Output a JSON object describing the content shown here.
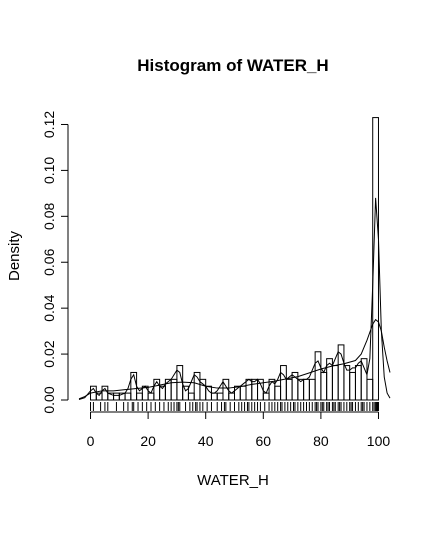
{
  "chart_data": {
    "type": "histogram",
    "title": "Histogram of WATER_H",
    "xlabel": "WATER_H",
    "ylabel": "Density",
    "xlim": [
      -4,
      104
    ],
    "ylim": [
      0,
      0.125
    ],
    "xticks": [
      0,
      20,
      40,
      60,
      80,
      100
    ],
    "yticks": [
      0.0,
      0.02,
      0.04,
      0.06,
      0.08,
      0.1,
      0.12
    ],
    "ytick_labels": [
      "0.00",
      "0.02",
      "0.04",
      "0.06",
      "0.08",
      "0.10",
      "0.12"
    ],
    "bin_width": 2,
    "bins": [
      {
        "x0": 0,
        "density": 0.006
      },
      {
        "x0": 2,
        "density": 0.003
      },
      {
        "x0": 4,
        "density": 0.006
      },
      {
        "x0": 6,
        "density": 0.003
      },
      {
        "x0": 8,
        "density": 0.003
      },
      {
        "x0": 10,
        "density": 0.003
      },
      {
        "x0": 12,
        "density": 0.003
      },
      {
        "x0": 14,
        "density": 0.012
      },
      {
        "x0": 16,
        "density": 0.003
      },
      {
        "x0": 18,
        "density": 0.006
      },
      {
        "x0": 20,
        "density": 0.003
      },
      {
        "x0": 22,
        "density": 0.009
      },
      {
        "x0": 24,
        "density": 0.006
      },
      {
        "x0": 26,
        "density": 0.009
      },
      {
        "x0": 28,
        "density": 0.009
      },
      {
        "x0": 30,
        "density": 0.015
      },
      {
        "x0": 32,
        "density": 0.006
      },
      {
        "x0": 34,
        "density": 0.003
      },
      {
        "x0": 36,
        "density": 0.012
      },
      {
        "x0": 38,
        "density": 0.009
      },
      {
        "x0": 40,
        "density": 0.006
      },
      {
        "x0": 42,
        "density": 0.003
      },
      {
        "x0": 44,
        "density": 0.003
      },
      {
        "x0": 46,
        "density": 0.009
      },
      {
        "x0": 48,
        "density": 0.003
      },
      {
        "x0": 50,
        "density": 0.006
      },
      {
        "x0": 52,
        "density": 0.006
      },
      {
        "x0": 54,
        "density": 0.009
      },
      {
        "x0": 56,
        "density": 0.009
      },
      {
        "x0": 58,
        "density": 0.009
      },
      {
        "x0": 60,
        "density": 0.003
      },
      {
        "x0": 62,
        "density": 0.009
      },
      {
        "x0": 64,
        "density": 0.006
      },
      {
        "x0": 66,
        "density": 0.015
      },
      {
        "x0": 68,
        "density": 0.009
      },
      {
        "x0": 70,
        "density": 0.012
      },
      {
        "x0": 72,
        "density": 0.009
      },
      {
        "x0": 74,
        "density": 0.009
      },
      {
        "x0": 76,
        "density": 0.009
      },
      {
        "x0": 78,
        "density": 0.021
      },
      {
        "x0": 80,
        "density": 0.012
      },
      {
        "x0": 82,
        "density": 0.018
      },
      {
        "x0": 84,
        "density": 0.015
      },
      {
        "x0": 86,
        "density": 0.024
      },
      {
        "x0": 88,
        "density": 0.015
      },
      {
        "x0": 90,
        "density": 0.012
      },
      {
        "x0": 92,
        "density": 0.015
      },
      {
        "x0": 94,
        "density": 0.018
      },
      {
        "x0": 96,
        "density": 0.009
      },
      {
        "x0": 98,
        "density": 0.123
      }
    ],
    "density_curve_wiggly": [
      [
        -4,
        0.0002
      ],
      [
        -2,
        0.001
      ],
      [
        0,
        0.004
      ],
      [
        1,
        0.005
      ],
      [
        2,
        0.003
      ],
      [
        3,
        0.002
      ],
      [
        4,
        0.004
      ],
      [
        5,
        0.005
      ],
      [
        6,
        0.003
      ],
      [
        8,
        0.002
      ],
      [
        10,
        0.002
      ],
      [
        12,
        0.003
      ],
      [
        13,
        0.005
      ],
      [
        14,
        0.009
      ],
      [
        15,
        0.011
      ],
      [
        16,
        0.006
      ],
      [
        17,
        0.004
      ],
      [
        18,
        0.005
      ],
      [
        19,
        0.006
      ],
      [
        20,
        0.004
      ],
      [
        21,
        0.003
      ],
      [
        22,
        0.006
      ],
      [
        23,
        0.008
      ],
      [
        24,
        0.006
      ],
      [
        25,
        0.005
      ],
      [
        26,
        0.007
      ],
      [
        27,
        0.008
      ],
      [
        28,
        0.009
      ],
      [
        29,
        0.011
      ],
      [
        30,
        0.013
      ],
      [
        31,
        0.012
      ],
      [
        32,
        0.007
      ],
      [
        33,
        0.004
      ],
      [
        34,
        0.005
      ],
      [
        35,
        0.008
      ],
      [
        36,
        0.011
      ],
      [
        37,
        0.01
      ],
      [
        38,
        0.008
      ],
      [
        39,
        0.007
      ],
      [
        40,
        0.006
      ],
      [
        41,
        0.004
      ],
      [
        42,
        0.003
      ],
      [
        43,
        0.003
      ],
      [
        44,
        0.004
      ],
      [
        45,
        0.006
      ],
      [
        46,
        0.008
      ],
      [
        47,
        0.006
      ],
      [
        48,
        0.004
      ],
      [
        49,
        0.003
      ],
      [
        50,
        0.004
      ],
      [
        51,
        0.005
      ],
      [
        52,
        0.006
      ],
      [
        53,
        0.007
      ],
      [
        54,
        0.008
      ],
      [
        55,
        0.009
      ],
      [
        56,
        0.008
      ],
      [
        57,
        0.008
      ],
      [
        58,
        0.009
      ],
      [
        59,
        0.007
      ],
      [
        60,
        0.004
      ],
      [
        61,
        0.003
      ],
      [
        62,
        0.006
      ],
      [
        63,
        0.008
      ],
      [
        64,
        0.007
      ],
      [
        65,
        0.009
      ],
      [
        66,
        0.012
      ],
      [
        67,
        0.011
      ],
      [
        68,
        0.009
      ],
      [
        69,
        0.01
      ],
      [
        70,
        0.011
      ],
      [
        71,
        0.01
      ],
      [
        72,
        0.009
      ],
      [
        73,
        0.008
      ],
      [
        74,
        0.009
      ],
      [
        75,
        0.009
      ],
      [
        76,
        0.01
      ],
      [
        77,
        0.013
      ],
      [
        78,
        0.016
      ],
      [
        79,
        0.017
      ],
      [
        80,
        0.014
      ],
      [
        81,
        0.012
      ],
      [
        82,
        0.015
      ],
      [
        83,
        0.016
      ],
      [
        84,
        0.015
      ],
      [
        85,
        0.018
      ],
      [
        86,
        0.021
      ],
      [
        87,
        0.02
      ],
      [
        88,
        0.016
      ],
      [
        89,
        0.013
      ],
      [
        90,
        0.013
      ],
      [
        91,
        0.014
      ],
      [
        92,
        0.014
      ],
      [
        93,
        0.016
      ],
      [
        94,
        0.017
      ],
      [
        95,
        0.014
      ],
      [
        96,
        0.011
      ],
      [
        97,
        0.018
      ],
      [
        98,
        0.05
      ],
      [
        99,
        0.088
      ],
      [
        100,
        0.07
      ],
      [
        101,
        0.03
      ],
      [
        102,
        0.01
      ],
      [
        103,
        0.003
      ],
      [
        104,
        0.0008
      ]
    ],
    "density_curve_smooth": [
      [
        -4,
        0.0005
      ],
      [
        -2,
        0.0015
      ],
      [
        0,
        0.003
      ],
      [
        4,
        0.004
      ],
      [
        8,
        0.004
      ],
      [
        12,
        0.0045
      ],
      [
        16,
        0.005
      ],
      [
        20,
        0.0055
      ],
      [
        24,
        0.0065
      ],
      [
        28,
        0.0075
      ],
      [
        32,
        0.0078
      ],
      [
        36,
        0.0075
      ],
      [
        40,
        0.006
      ],
      [
        44,
        0.0052
      ],
      [
        48,
        0.0052
      ],
      [
        52,
        0.0058
      ],
      [
        56,
        0.0068
      ],
      [
        60,
        0.0075
      ],
      [
        64,
        0.0082
      ],
      [
        68,
        0.0092
      ],
      [
        72,
        0.0102
      ],
      [
        76,
        0.0118
      ],
      [
        80,
        0.0135
      ],
      [
        84,
        0.0148
      ],
      [
        88,
        0.0158
      ],
      [
        92,
        0.0172
      ],
      [
        94,
        0.02
      ],
      [
        96,
        0.026
      ],
      [
        98,
        0.033
      ],
      [
        99,
        0.035
      ],
      [
        100,
        0.034
      ],
      [
        101,
        0.03
      ],
      [
        102,
        0.023
      ],
      [
        103,
        0.017
      ],
      [
        104,
        0.012
      ]
    ],
    "rug": [
      0,
      1,
      3.5,
      5,
      6,
      9,
      11.5,
      13,
      14.5,
      15,
      16.5,
      18,
      19.5,
      21,
      22.5,
      24,
      25.5,
      27,
      28,
      29,
      30,
      30.5,
      31,
      33,
      34.5,
      35.5,
      36.5,
      37,
      38,
      39,
      40.5,
      42,
      44,
      45.5,
      46.5,
      47,
      48.5,
      50,
      51.5,
      52.5,
      53.5,
      54.5,
      55,
      56,
      57,
      58,
      59,
      60.5,
      62,
      63,
      64,
      65,
      66,
      66.5,
      67.5,
      68.5,
      69.5,
      70.5,
      71,
      72,
      73,
      74,
      75,
      76,
      77,
      78,
      78.5,
      79,
      80,
      80.5,
      81,
      82,
      82.5,
      83,
      84,
      84.5,
      85,
      86,
      86.5,
      87,
      88,
      89,
      90,
      90.5,
      91,
      92,
      93,
      94,
      94.5,
      95,
      96,
      97,
      98,
      98.5,
      99,
      99.2,
      99.5,
      99.7,
      100
    ]
  }
}
